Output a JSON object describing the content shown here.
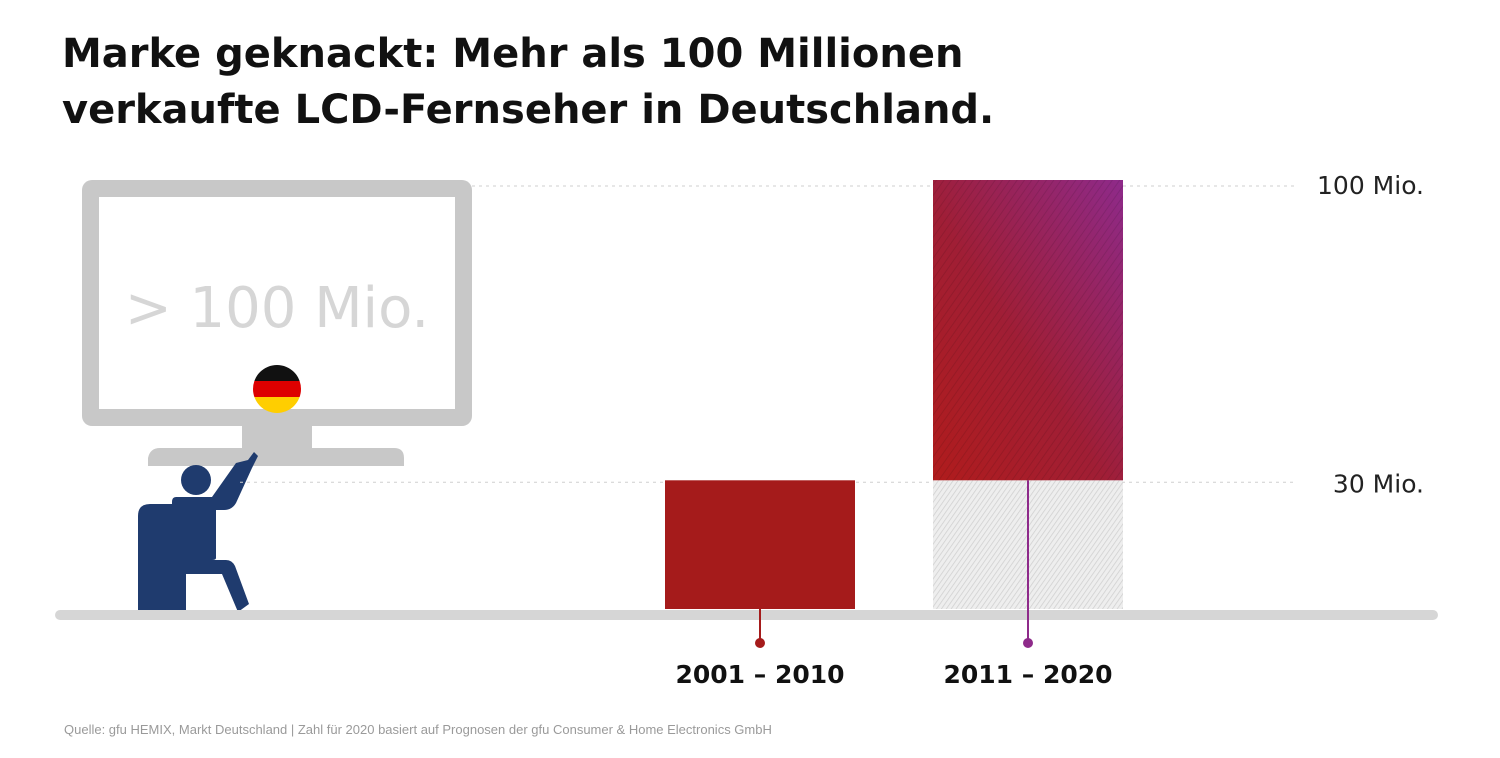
{
  "title": {
    "line1": "Marke geknackt: Mehr als 100 Millionen",
    "line2": "verkaufte LCD-Fernseher in Deutschland."
  },
  "illustration": {
    "tv_screen_text": "> 100 Mio.",
    "flag_colors": [
      "#111111",
      "#dd0000",
      "#ffce00"
    ],
    "person_color": "#1f3b6e",
    "tv_color": "#c8c8c8"
  },
  "chart_data": {
    "type": "bar",
    "categories": [
      "2001 – 2010",
      "2011 – 2020"
    ],
    "values": [
      30,
      100
    ],
    "unit": "Mio.",
    "ylim": [
      0,
      100
    ],
    "yticks": [
      {
        "value": 100,
        "label": "100 Mio."
      },
      {
        "value": 30,
        "label": "30 Mio."
      }
    ],
    "stacked_second_bar": {
      "base": 30,
      "top": 100
    },
    "colors": {
      "bar_2001_2010": "#a51b1b",
      "bar_2011_2020_bottom": "#a51b1b",
      "bar_2011_2020_top": "#8e2a8a",
      "bar_2011_2020_base_hatch": "#d8d8d8",
      "marker_2001_2010": "#a51b1b",
      "marker_2011_2020": "#8e2a8a",
      "baseline": "#d6d6d6",
      "gridline": "#cfcfcf"
    }
  },
  "source": "Quelle: gfu HEMIX, Markt Deutschland | Zahl für 2020 basiert auf Prognosen der gfu Consumer & Home Electronics GmbH"
}
